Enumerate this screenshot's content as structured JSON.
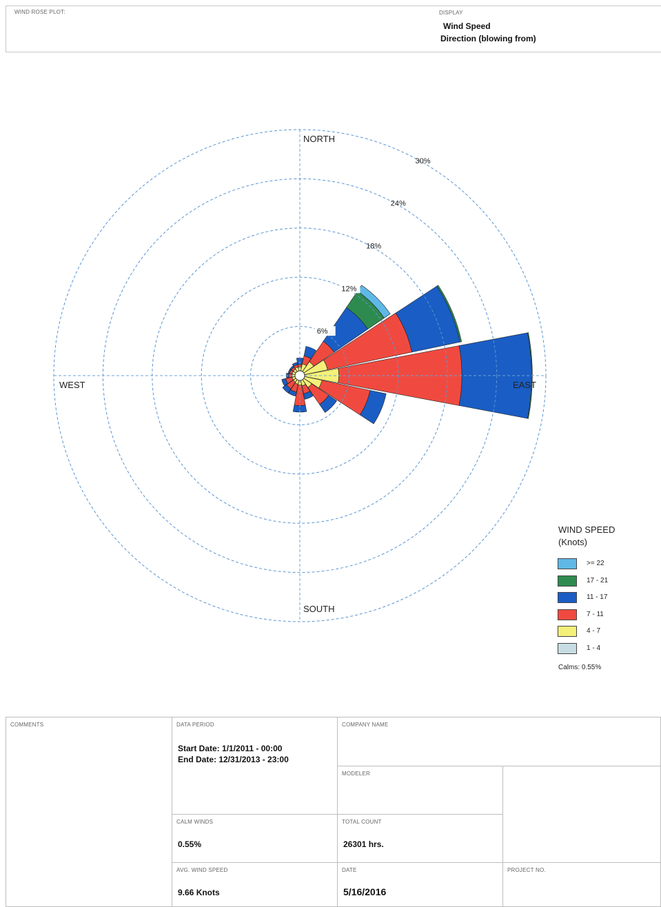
{
  "header": {
    "title": "WIND ROSE PLOT:",
    "display_label": "DISPLAY",
    "display_line1": "Wind Speed",
    "display_line2": "Direction (blowing from)"
  },
  "chart_data": {
    "type": "wind-rose",
    "directions": [
      "N",
      "NNE",
      "NE",
      "ENE",
      "E",
      "ESE",
      "SE",
      "SSE",
      "S",
      "SSW",
      "SW",
      "WSW",
      "W",
      "WNW",
      "NW",
      "NNW"
    ],
    "compass_labels": {
      "north": "NORTH",
      "south": "SOUTH",
      "east": "EAST",
      "west": "WEST"
    },
    "ring_percent": [
      6,
      12,
      18,
      24,
      30
    ],
    "ring_labels": [
      "6%",
      "12%",
      "18%",
      "24%",
      "30%"
    ],
    "rmax_percent": 30,
    "series": [
      {
        "name": "1 - 4",
        "color": "#c8dde3",
        "values": [
          0.25,
          0.25,
          0.25,
          0.25,
          0.25,
          0.25,
          0.25,
          0.25,
          0.25,
          0.25,
          0.25,
          0.25,
          0.25,
          0.25,
          0.25,
          0.25
        ]
      },
      {
        "name": "4 - 7",
        "color": "#f4f078",
        "values": [
          0.8,
          1.2,
          1.8,
          3.2,
          4.5,
          2.5,
          1.5,
          1.0,
          0.9,
          0.8,
          0.7,
          0.7,
          0.7,
          0.7,
          0.7,
          0.8
        ]
      },
      {
        "name": "7 - 11",
        "color": "#f04a40",
        "values": [
          0.3,
          1.0,
          3.0,
          10.5,
          15.0,
          6.0,
          2.5,
          1.0,
          2.5,
          1.0,
          1.0,
          0.8,
          0.4,
          0.3,
          0.3,
          0.3
        ]
      },
      {
        "name": "11 - 17",
        "color": "#1a5dc4",
        "values": [
          0.8,
          1.2,
          5.0,
          6.0,
          8.5,
          2.0,
          1.2,
          0.7,
          0.8,
          0.5,
          0.6,
          0.5,
          0.3,
          0.2,
          0.2,
          0.3
        ]
      },
      {
        "name": "17 - 21",
        "color": "#2e8b4f",
        "values": [
          0,
          0,
          2.4,
          0.2,
          0.1,
          0,
          0,
          0,
          0,
          0,
          0,
          0,
          0,
          0,
          0,
          0
        ]
      },
      {
        "name": ">= 22",
        "color": "#5fb8e6",
        "values": [
          0,
          0,
          0.9,
          0,
          0,
          0,
          0,
          0,
          0,
          0,
          0,
          0,
          0,
          0,
          0,
          0
        ]
      }
    ],
    "legend_title": "WIND SPEED",
    "legend_subtitle": "(Knots)",
    "legend_placement": "bottom-right",
    "calms_label": "Calms: 0.55%"
  },
  "footer": {
    "comments_label": "COMMENTS",
    "data_period_label": "DATA PERIOD",
    "start_date": "Start Date: 1/1/2011 - 00:00",
    "end_date": "End Date: 12/31/2013 - 23:00",
    "company_label": "COMPANY NAME",
    "modeler_label": "MODELER",
    "calm_winds_label": "CALM WINDS",
    "calm_winds_value": "0.55%",
    "total_count_label": "TOTAL COUNT",
    "total_count_value": "26301 hrs.",
    "avg_speed_label": "AVG. WIND SPEED",
    "avg_speed_value": "9.66 Knots",
    "date_label": "DATE",
    "date_value": "5/16/2016",
    "project_label": "PROJECT NO."
  }
}
